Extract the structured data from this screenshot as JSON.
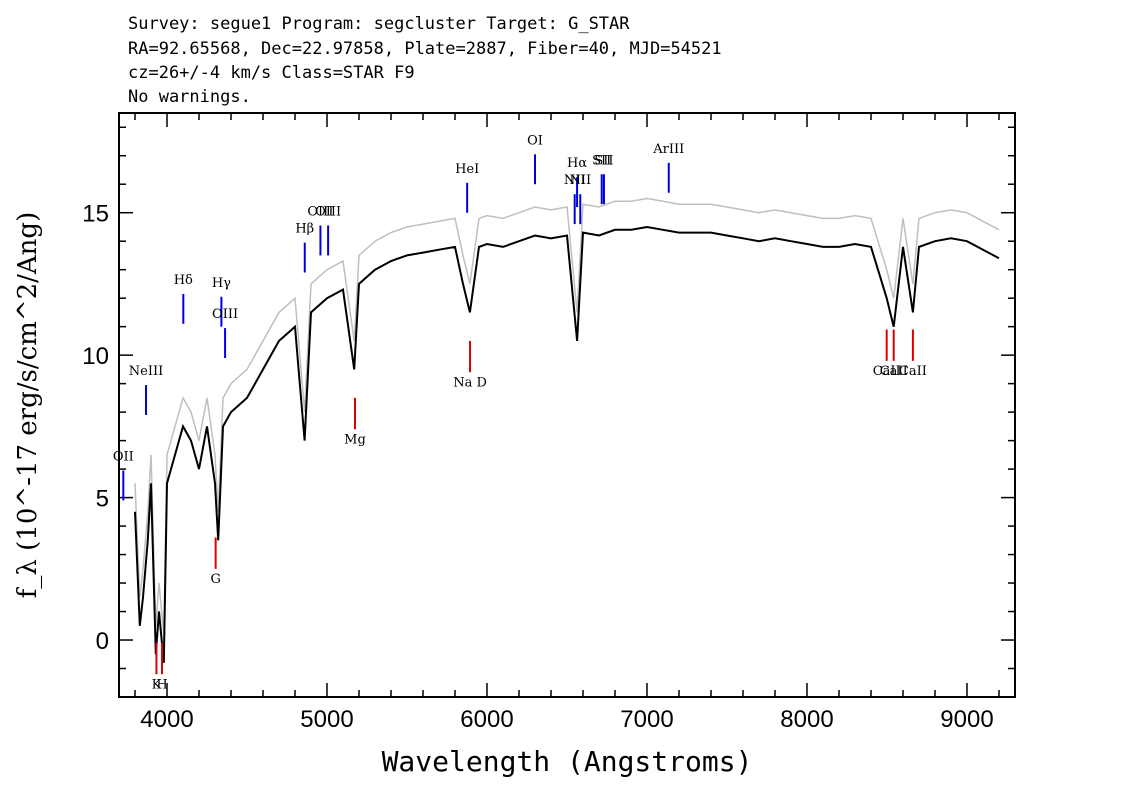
{
  "header": {
    "line1": "Survey: segue1 Program: segcluster Target: G_STAR",
    "line2": "RA=92.65568, Dec=22.97858, Plate=2887, Fiber=40, MJD=54521",
    "line3": "cz=26+/-4 km/s Class=STAR F9",
    "line4": "No warnings."
  },
  "chart_data": {
    "type": "line",
    "xlabel": "Wavelength (Angstroms)",
    "ylabel": "f_λ (10^-17 erg/s/cm^2/Ang)",
    "xlim": [
      3700,
      9300
    ],
    "ylim": [
      -2,
      18.5
    ],
    "x_ticks": [
      4000,
      5000,
      6000,
      7000,
      8000,
      9000
    ],
    "y_ticks": [
      0,
      5,
      10,
      15
    ],
    "series": [
      {
        "color": "#000000",
        "x": [
          3800,
          3830,
          3850,
          3880,
          3900,
          3930,
          3950,
          3980,
          4000,
          4050,
          4100,
          4150,
          4200,
          4250,
          4300,
          4320,
          4350,
          4400,
          4500,
          4600,
          4700,
          4800,
          4860,
          4900,
          5000,
          5100,
          5170,
          5200,
          5300,
          5400,
          5500,
          5600,
          5700,
          5800,
          5850,
          5893,
          5950,
          6000,
          6100,
          6200,
          6300,
          6400,
          6500,
          6563,
          6600,
          6700,
          6800,
          6900,
          7000,
          7100,
          7200,
          7300,
          7400,
          7500,
          7600,
          7700,
          7800,
          7900,
          8000,
          8100,
          8200,
          8300,
          8400,
          8498,
          8542,
          8600,
          8662,
          8700,
          8800,
          8900,
          9000,
          9100,
          9200
        ],
        "y": [
          4.5,
          0.5,
          1.5,
          3.5,
          5.5,
          -0.5,
          1.0,
          -0.8,
          5.5,
          6.5,
          7.5,
          7.0,
          6.0,
          7.5,
          5.5,
          3.5,
          7.5,
          8.0,
          8.5,
          9.5,
          10.5,
          11.0,
          7.0,
          11.5,
          12.0,
          12.3,
          9.5,
          12.5,
          13.0,
          13.3,
          13.5,
          13.6,
          13.7,
          13.8,
          12.5,
          11.5,
          13.8,
          13.9,
          13.8,
          14.0,
          14.2,
          14.1,
          14.2,
          10.5,
          14.3,
          14.2,
          14.4,
          14.4,
          14.5,
          14.4,
          14.3,
          14.3,
          14.3,
          14.2,
          14.1,
          14.0,
          14.1,
          14.0,
          13.9,
          13.8,
          13.8,
          13.9,
          13.8,
          12.0,
          11.0,
          13.8,
          11.5,
          13.8,
          14.0,
          14.1,
          14.0,
          13.7,
          13.4
        ]
      },
      {
        "color": "#bfbfbf",
        "x": [
          3800,
          3830,
          3850,
          3880,
          3900,
          3930,
          3950,
          3980,
          4000,
          4050,
          4100,
          4150,
          4200,
          4250,
          4300,
          4320,
          4350,
          4400,
          4500,
          4600,
          4700,
          4800,
          4860,
          4900,
          5000,
          5100,
          5170,
          5200,
          5300,
          5400,
          5500,
          5600,
          5700,
          5800,
          5850,
          5893,
          5950,
          6000,
          6100,
          6200,
          6300,
          6400,
          6500,
          6563,
          6600,
          6700,
          6800,
          6900,
          7000,
          7100,
          7200,
          7300,
          7400,
          7500,
          7600,
          7700,
          7800,
          7900,
          8000,
          8100,
          8200,
          8300,
          8400,
          8498,
          8542,
          8600,
          8662,
          8700,
          8800,
          8900,
          9000,
          9100,
          9200
        ],
        "y": [
          5.5,
          1.5,
          2.5,
          4.5,
          6.5,
          0.5,
          2.0,
          0.2,
          6.5,
          7.5,
          8.5,
          8.0,
          7.0,
          8.5,
          6.5,
          4.5,
          8.5,
          9.0,
          9.5,
          10.5,
          11.5,
          12.0,
          8.0,
          12.5,
          13.0,
          13.3,
          10.5,
          13.5,
          14.0,
          14.3,
          14.5,
          14.6,
          14.7,
          14.8,
          13.5,
          12.5,
          14.8,
          14.9,
          14.8,
          15.0,
          15.2,
          15.1,
          15.2,
          11.5,
          15.3,
          15.2,
          15.4,
          15.4,
          15.5,
          15.4,
          15.3,
          15.3,
          15.3,
          15.2,
          15.1,
          15.0,
          15.1,
          15.0,
          14.9,
          14.8,
          14.8,
          14.9,
          14.8,
          13.0,
          12.0,
          14.8,
          12.5,
          14.8,
          15.0,
          15.1,
          15.0,
          14.7,
          14.4
        ]
      }
    ],
    "emission_lines": [
      {
        "label": "OII",
        "x": 3727,
        "y_label": 6.3
      },
      {
        "label": "NeIII",
        "x": 3869,
        "y_label": 9.3
      },
      {
        "label": "Hδ",
        "x": 4102,
        "y_label": 12.5
      },
      {
        "label": "Hγ",
        "x": 4340,
        "y_label": 12.4
      },
      {
        "label": "OIII",
        "x": 4363,
        "y_label": 11.3
      },
      {
        "label": "Hβ",
        "x": 4861,
        "y_label": 14.3
      },
      {
        "label": "OIII",
        "x": 4959,
        "y_label": 14.9
      },
      {
        "label": "OIII",
        "x": 5007,
        "y_label": 14.9
      },
      {
        "label": "HeI",
        "x": 5876,
        "y_label": 16.4
      },
      {
        "label": "OI",
        "x": 6300,
        "y_label": 17.4
      },
      {
        "label": "NII",
        "x": 6548,
        "y_label": 16.0
      },
      {
        "label": "Hα",
        "x": 6563,
        "y_label": 16.6
      },
      {
        "label": "NII",
        "x": 6583,
        "y_label": 16.0
      },
      {
        "label": "SII",
        "x": 6717,
        "y_label": 16.7
      },
      {
        "label": "SII",
        "x": 6731,
        "y_label": 16.7
      },
      {
        "label": "ArIII",
        "x": 7136,
        "y_label": 17.1
      }
    ],
    "absorption_lines": [
      {
        "label": "K",
        "x": 3934,
        "y_label": -1.7
      },
      {
        "label": "H",
        "x": 3969,
        "y_label": -1.7
      },
      {
        "label": "G",
        "x": 4304,
        "y_label": 2.0
      },
      {
        "label": "Mg",
        "x": 5175,
        "y_label": 6.9
      },
      {
        "label": "Na D",
        "x": 5894,
        "y_label": 8.9
      },
      {
        "label": "CaII",
        "x": 8498,
        "y_label": 9.3
      },
      {
        "label": "CaII",
        "x": 8542,
        "y_label": 9.3
      },
      {
        "label": "CaII",
        "x": 8662,
        "y_label": 9.3
      }
    ]
  }
}
